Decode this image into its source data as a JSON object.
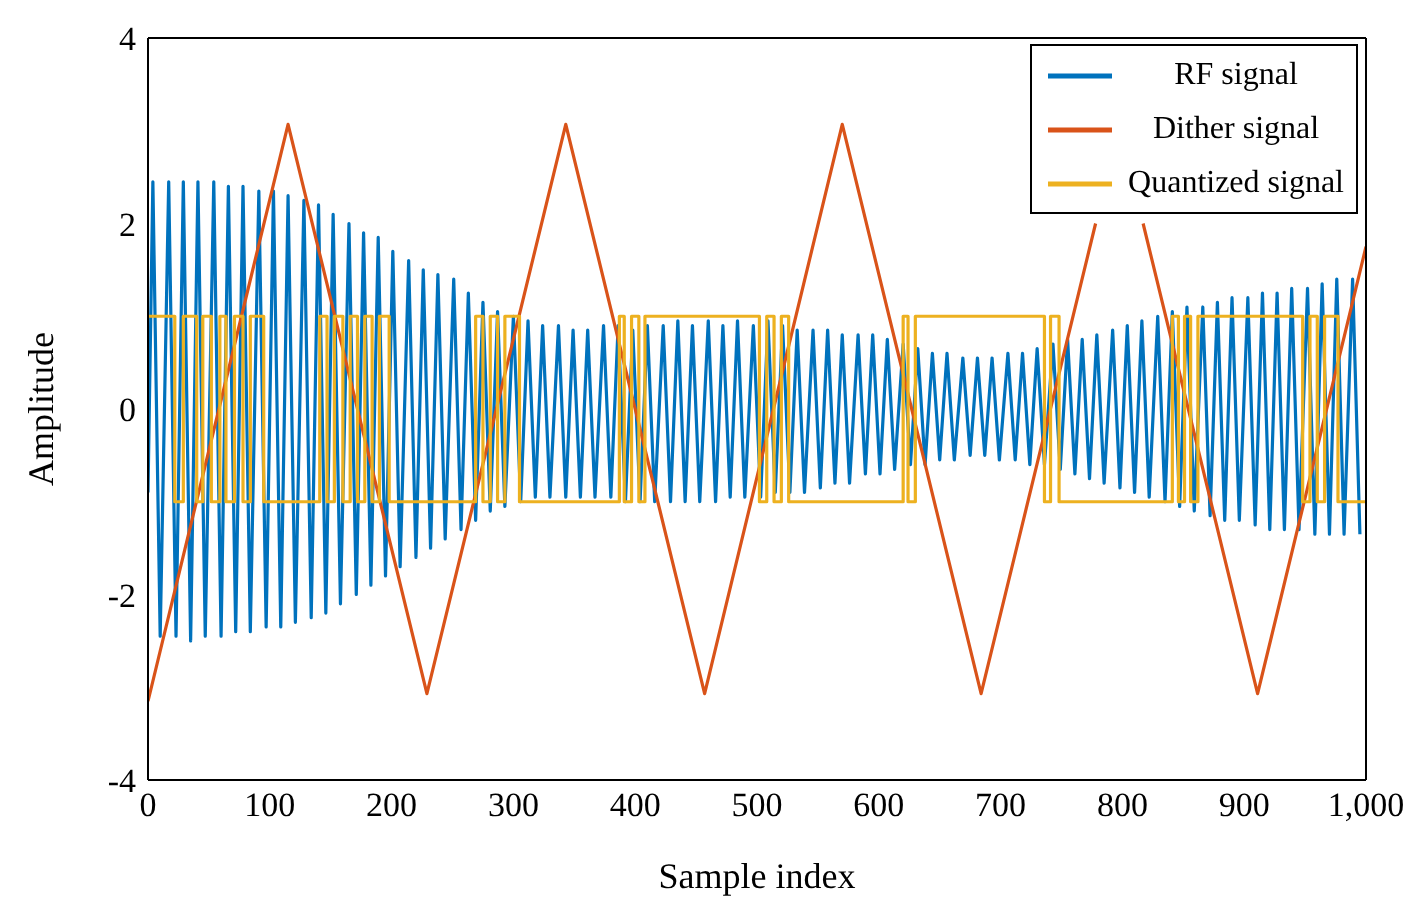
{
  "chart_data": {
    "type": "line",
    "xlabel": "Sample index",
    "ylabel": "Amplitude",
    "xlim": [
      0,
      1000
    ],
    "xticks": [
      0,
      100,
      200,
      300,
      400,
      500,
      600,
      700,
      800,
      900,
      {
        "value": 1000,
        "label": "1,000"
      }
    ],
    "ylim": [
      -4,
      4
    ],
    "yticks": [
      -4,
      -2,
      0,
      2,
      4
    ],
    "legend": "top right",
    "marker": "none",
    "line_style": "solid",
    "series": [
      {
        "name": "RF signal",
        "color": "#0072bd",
        "type": "line",
        "x": [
          0,
          4,
          10,
          17,
          23,
          29,
          35,
          41,
          47,
          54,
          60,
          66,
          72,
          78,
          84,
          91,
          97,
          103,
          109,
          115,
          121,
          128,
          134,
          140,
          146,
          152,
          158,
          165,
          171,
          177,
          183,
          189,
          195,
          201,
          207,
          214,
          220,
          226,
          232,
          238,
          244,
          251,
          257,
          263,
          269,
          275,
          281,
          287,
          293,
          300,
          306,
          312,
          318,
          324,
          330,
          337,
          343,
          349,
          355,
          361,
          367,
          374,
          380,
          386,
          392,
          398,
          404,
          410,
          416,
          423,
          429,
          435,
          441,
          447,
          453,
          460,
          466,
          472,
          478,
          484,
          490,
          497,
          503,
          509,
          515,
          521,
          527,
          533,
          539,
          546,
          552,
          558,
          564,
          570,
          576,
          583,
          589,
          595,
          601,
          607,
          613,
          620,
          626,
          632,
          638,
          644,
          650,
          656,
          662,
          669,
          675,
          681,
          687,
          693,
          699,
          706,
          712,
          718,
          724,
          730,
          736,
          743,
          749,
          755,
          761,
          767,
          773,
          779,
          785,
          792,
          798,
          804,
          810,
          816,
          822,
          829,
          835,
          841,
          847,
          853,
          859,
          866,
          872,
          878,
          884,
          890,
          896,
          903,
          909,
          915,
          921,
          927,
          933,
          939,
          945,
          952,
          958,
          964,
          970,
          976,
          982,
          989,
          995
        ],
        "values": [
          -0.9,
          2.45,
          -2.45,
          2.45,
          -2.45,
          2.45,
          -2.5,
          2.45,
          -2.45,
          2.45,
          -2.45,
          2.4,
          -2.4,
          2.4,
          -2.4,
          2.35,
          -2.35,
          2.35,
          -2.35,
          2.3,
          -2.3,
          2.25,
          -2.25,
          2.2,
          -2.2,
          2.1,
          -2.1,
          2.0,
          -2.0,
          1.9,
          -1.9,
          1.85,
          -1.8,
          1.7,
          -1.7,
          1.6,
          -1.6,
          1.5,
          -1.5,
          1.45,
          -1.4,
          1.4,
          -1.3,
          1.25,
          -1.2,
          1.15,
          -1.1,
          1.05,
          -1.05,
          1.0,
          -1.0,
          0.95,
          -0.95,
          0.9,
          -0.95,
          0.9,
          -0.95,
          0.85,
          -0.95,
          0.85,
          -0.95,
          0.9,
          -0.95,
          0.9,
          -1.0,
          0.85,
          -1.0,
          0.9,
          -1.0,
          0.9,
          -1.0,
          0.95,
          -1.0,
          0.9,
          -1.0,
          0.95,
          -1.0,
          0.9,
          -0.95,
          0.95,
          -0.95,
          0.9,
          -0.95,
          0.95,
          -0.9,
          0.9,
          -0.9,
          0.85,
          -0.9,
          0.85,
          -0.85,
          0.85,
          -0.8,
          0.8,
          -0.8,
          0.8,
          -0.7,
          0.8,
          -0.7,
          0.75,
          -0.65,
          0.7,
          -0.6,
          0.65,
          -0.6,
          0.6,
          -0.55,
          0.6,
          -0.55,
          0.55,
          -0.5,
          0.55,
          -0.5,
          0.55,
          -0.55,
          0.6,
          -0.55,
          0.6,
          -0.6,
          0.65,
          -0.6,
          0.7,
          -0.65,
          0.75,
          -0.7,
          0.75,
          -0.75,
          0.8,
          -0.8,
          0.85,
          -0.85,
          0.9,
          -0.9,
          0.95,
          -0.95,
          1.0,
          -1.0,
          1.05,
          -1.05,
          1.1,
          -1.1,
          1.1,
          -1.15,
          1.15,
          -1.2,
          1.2,
          -1.2,
          1.2,
          -1.25,
          1.25,
          -1.3,
          1.25,
          -1.3,
          1.3,
          -1.3,
          1.3,
          -1.35,
          1.35,
          -1.35,
          1.4,
          -1.35,
          1.4,
          -1.35
        ]
      },
      {
        "name": "Dither signal",
        "color": "#d95319",
        "type": "line",
        "x": [
          0,
          115,
          229,
          343,
          457,
          570,
          684,
          778,
          797,
          817,
          911,
          1000
        ],
        "values": [
          -3.15,
          3.07,
          -3.07,
          3.07,
          -3.07,
          3.07,
          -3.07,
          2.0,
          null,
          2.0,
          -3.07,
          1.75
        ]
      },
      {
        "name": "Quantized signal",
        "color": "#edb120",
        "type": "step",
        "x": [
          0,
          22,
          29,
          40,
          45,
          52,
          59,
          64,
          71,
          78,
          84,
          95,
          141,
          147,
          153,
          160,
          166,
          172,
          178,
          184,
          190,
          198,
          269,
          275,
          281,
          287,
          293,
          305,
          387,
          391,
          397,
          403,
          408,
          502,
          508,
          514,
          520,
          526,
          620,
          624,
          630,
          736,
          741,
          748,
          841,
          846,
          851,
          856,
          862,
          948,
          954,
          960,
          966,
          977,
          1000
        ],
        "values": [
          1,
          -1,
          1,
          -1,
          1,
          -1,
          1,
          -1,
          1,
          -1,
          1,
          -1,
          1,
          -1,
          1,
          -1,
          1,
          -1,
          1,
          -1,
          1,
          -1,
          1,
          -1,
          1,
          -1,
          1,
          -1,
          1,
          -1,
          1,
          -1,
          1,
          -1,
          1,
          -1,
          1,
          -1,
          1,
          -1,
          1,
          -1,
          1,
          -1,
          1,
          -1,
          1,
          -1,
          1,
          -1,
          1,
          -1,
          1,
          -1,
          -1
        ]
      }
    ]
  }
}
